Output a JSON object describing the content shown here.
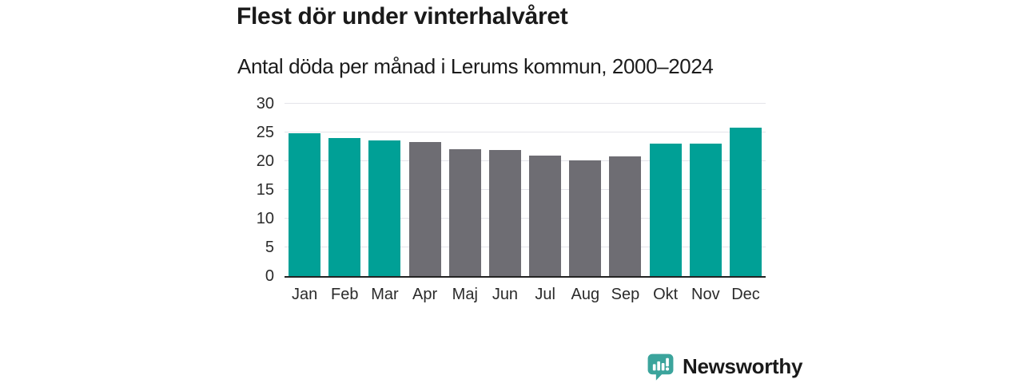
{
  "page": {
    "background": "#ffffff"
  },
  "chart_data": {
    "type": "bar",
    "title": "Flest dör under vinterhalvåret",
    "subtitle": "Antal döda per månad i Lerums kommun, 2000–2024",
    "categories": [
      "Jan",
      "Feb",
      "Mar",
      "Apr",
      "Maj",
      "Jun",
      "Jul",
      "Aug",
      "Sep",
      "Okt",
      "Nov",
      "Dec"
    ],
    "values": [
      24.9,
      24.0,
      23.6,
      23.4,
      22.1,
      22.0,
      21.0,
      20.2,
      20.8,
      23.0,
      23.0,
      25.8
    ],
    "winter_highlight": [
      true,
      true,
      true,
      false,
      false,
      false,
      false,
      false,
      false,
      true,
      true,
      true
    ],
    "xlabel": "",
    "ylabel": "",
    "ylim": [
      0,
      30
    ],
    "yticks": [
      0,
      5,
      10,
      15,
      20,
      25,
      30
    ],
    "grid": "horizontal",
    "legend": "none",
    "colors": {
      "winter_bar": "#00a096",
      "summer_bar": "#6e6d73",
      "gridline": "#e4e4ea",
      "axis_line": "#232323",
      "tick_text": "#2b2b2b",
      "title_text": "#1a1a1a"
    }
  },
  "branding": {
    "logo_text": "Newsworthy",
    "logo_text_color": "#2f9c95",
    "logo_icon": "bar-chart-speech-bubble",
    "logo_icon_color": "#3ba49c"
  }
}
